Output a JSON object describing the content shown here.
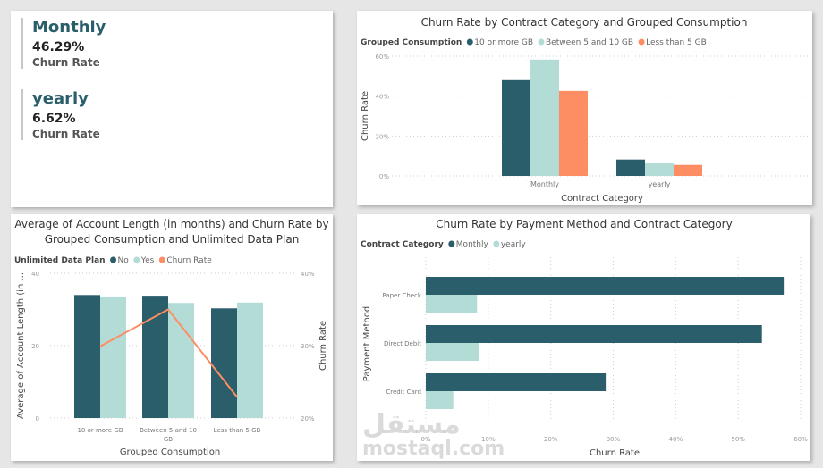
{
  "kpis": [
    {
      "title": "Monthly",
      "value": "46.29%",
      "label": "Churn Rate"
    },
    {
      "title": "yearly",
      "value": "6.62%",
      "label": "Churn Rate"
    }
  ],
  "watermark": {
    "arabic": "مستقل",
    "latin": "mostaql.com"
  },
  "chart_data": [
    {
      "type": "bar",
      "title": "Churn Rate by Contract Category and Grouped Consumption",
      "legend_title": "Grouped Consumption",
      "legend_placement": "top-left",
      "categories": [
        "Monthly",
        "yearly"
      ],
      "series": [
        {
          "name": "10 or more GB",
          "color": "#2b5e6b",
          "values": [
            48.0,
            8.2
          ]
        },
        {
          "name": "Between 5 and 10 GB",
          "color": "#b3dcd7",
          "values": [
            58.3,
            6.4
          ]
        },
        {
          "name": "Less than 5 GB",
          "color": "#fd8d62",
          "values": [
            42.6,
            5.5
          ]
        }
      ],
      "xlabel": "Contract Category",
      "ylabel": "Churn Rate",
      "ylim": [
        0,
        60
      ],
      "yticks": [
        "0%",
        "20%",
        "40%",
        "60%"
      ],
      "grid": true
    },
    {
      "type": "bar+line",
      "title": "Average of Account Length (in months) and Churn Rate by Grouped Consumption and Unlimited Data Plan",
      "legend_title": "Unlimited Data Plan",
      "legend_placement": "top-left",
      "categories": [
        "10 or more GB",
        "Between 5 and 10 GB",
        "Less than 5 GB"
      ],
      "series": [
        {
          "name": "No",
          "color": "#2b5e6b",
          "values": [
            34.0,
            33.8,
            30.3
          ]
        },
        {
          "name": "Yes",
          "color": "#b3dcd7",
          "values": [
            33.6,
            31.8,
            31.9
          ]
        }
      ],
      "line": {
        "name": "Churn Rate",
        "color": "#fd8d62",
        "values": [
          29.9,
          35.0,
          22.9
        ]
      },
      "xlabel": "Grouped Consumption",
      "ylabel": "Average of Account Length (in ...",
      "y2label": "Churn Rate",
      "ylim": [
        0,
        40
      ],
      "y2lim": [
        20,
        40
      ],
      "yticks": [
        "0",
        "20",
        "40"
      ],
      "y2ticks": [
        "20%",
        "30%",
        "40%"
      ],
      "grid": true
    },
    {
      "type": "bar",
      "orientation": "horizontal",
      "title": "Churn Rate by Payment Method and Contract Category",
      "legend_title": "Contract Category",
      "legend_placement": "top-left",
      "categories": [
        "Paper Check",
        "Direct Debit",
        "Credit Card"
      ],
      "series": [
        {
          "name": "Monthly",
          "color": "#2b5e6b",
          "values": [
            57.3,
            53.8,
            28.8
          ]
        },
        {
          "name": "yearly",
          "color": "#b3dcd7",
          "values": [
            8.2,
            8.5,
            4.4
          ]
        }
      ],
      "xlabel": "Churn Rate",
      "ylabel": "Payment Method",
      "xlim": [
        0,
        60
      ],
      "xticks": [
        "0%",
        "10%",
        "20%",
        "30%",
        "40%",
        "50%",
        "60%"
      ],
      "grid": true
    }
  ]
}
